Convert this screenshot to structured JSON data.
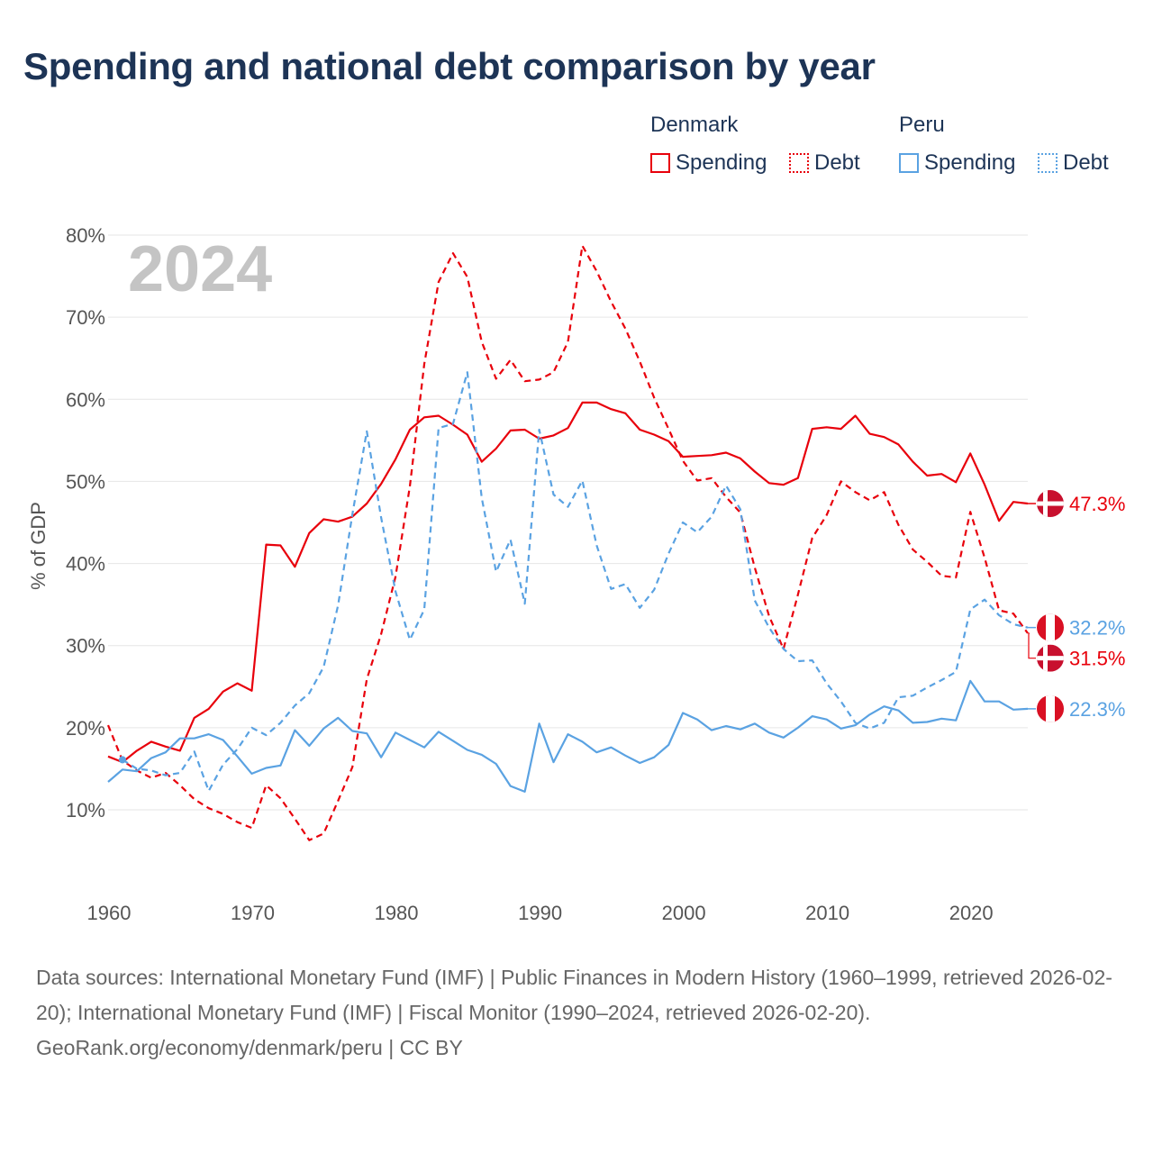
{
  "title": "Spending and national debt comparison by year",
  "legend": {
    "groups": [
      {
        "country": "Denmark",
        "items": [
          {
            "label": "Spending",
            "style": "solid",
            "color": "#e8000b"
          },
          {
            "label": "Debt",
            "style": "dashed",
            "color": "#e8000b"
          }
        ]
      },
      {
        "country": "Peru",
        "items": [
          {
            "label": "Spending",
            "style": "solid",
            "color": "#5aa2e2"
          },
          {
            "label": "Debt",
            "style": "dashed",
            "color": "#5aa2e2"
          }
        ]
      }
    ]
  },
  "colors": {
    "denmark": "#e8000b",
    "peru": "#5aa2e2",
    "grid": "#e6e6e6",
    "title": "#1d3456"
  },
  "year_label": "2024",
  "chart_data": {
    "type": "line",
    "ylabel": "% of GDP",
    "xlim": [
      1960,
      2024
    ],
    "ylim": [
      0,
      82
    ],
    "y_ticks": [
      10,
      20,
      30,
      40,
      50,
      60,
      70,
      80
    ],
    "y_tick_labels": [
      "10%",
      "20%",
      "30%",
      "40%",
      "50%",
      "60%",
      "70%",
      "80%"
    ],
    "x_ticks": [
      1960,
      1970,
      1980,
      1990,
      2000,
      2010,
      2020
    ],
    "x_tick_labels": [
      "1960",
      "1970",
      "1980",
      "1990",
      "2000",
      "2010",
      "2020"
    ],
    "grid": true,
    "series": [
      {
        "name": "Denmark Spending",
        "country": "Denmark",
        "metric": "Spending",
        "style": "solid",
        "color": "#e8000b",
        "start_year": 1960,
        "values": [
          16.5,
          15.8,
          17.2,
          18.3,
          17.7,
          17.2,
          21.2,
          22.3,
          24.4,
          25.4,
          24.5,
          42.3,
          42.2,
          39.6,
          43.7,
          45.4,
          45.1,
          45.7,
          47.3,
          49.7,
          52.7,
          56.3,
          57.8,
          58.0,
          56.9,
          55.7,
          52.4,
          54.0,
          56.2,
          56.3,
          55.2,
          55.6,
          56.5,
          59.6,
          59.6,
          58.8,
          58.3,
          56.3,
          55.7,
          54.9,
          53.0,
          53.1,
          53.2,
          53.5,
          52.8,
          51.2,
          49.8,
          49.6,
          50.4,
          56.4,
          56.6,
          56.4,
          58.0,
          55.8,
          55.4,
          54.5,
          52.4,
          50.7,
          50.9,
          49.9,
          53.4,
          49.6,
          45.2,
          47.5,
          47.3
        ]
      },
      {
        "name": "Denmark Debt",
        "country": "Denmark",
        "metric": "Debt",
        "style": "dashed",
        "color": "#e8000b",
        "start_year": 1960,
        "values": [
          20.3,
          16.0,
          14.8,
          13.9,
          14.5,
          13.0,
          11.3,
          10.2,
          9.5,
          8.5,
          7.8,
          13.0,
          11.4,
          8.9,
          6.3,
          7.1,
          11.1,
          15.2,
          25.9,
          31.4,
          38.4,
          49.4,
          64.3,
          74.3,
          77.8,
          74.9,
          67.0,
          62.5,
          64.8,
          62.2,
          62.4,
          63.3,
          67.0,
          78.7,
          75.6,
          71.9,
          68.6,
          64.6,
          60.2,
          56.4,
          52.5,
          50.1,
          50.4,
          48.1,
          46.2,
          39.5,
          33.6,
          29.6,
          36.2,
          43.1,
          45.9,
          50.0,
          48.7,
          47.7,
          48.7,
          44.7,
          41.7,
          40.2,
          38.5,
          38.3,
          46.3,
          40.7,
          34.3,
          33.9,
          31.5
        ]
      },
      {
        "name": "Peru Spending",
        "country": "Peru",
        "metric": "Spending",
        "style": "solid",
        "color": "#5aa2e2",
        "start_year": 1960,
        "values": [
          13.4,
          14.9,
          14.7,
          16.3,
          17.0,
          18.7,
          18.7,
          19.2,
          18.5,
          16.5,
          14.4,
          15.1,
          15.4,
          19.7,
          17.8,
          19.9,
          21.2,
          19.6,
          19.3,
          16.4,
          19.4,
          18.5,
          17.6,
          19.5,
          18.4,
          17.3,
          16.7,
          15.6,
          12.9,
          12.2,
          20.5,
          15.8,
          19.2,
          18.3,
          17.0,
          17.6,
          16.6,
          15.7,
          16.4,
          17.9,
          21.8,
          21.0,
          19.7,
          20.2,
          19.8,
          20.5,
          19.4,
          18.8,
          20.0,
          21.4,
          21.0,
          19.9,
          20.3,
          21.6,
          22.6,
          22.1,
          20.6,
          20.7,
          21.1,
          20.9,
          25.7,
          23.2,
          23.2,
          22.2,
          22.3
        ]
      },
      {
        "name": "Peru Debt",
        "country": "Peru",
        "metric": "Debt",
        "style": "dashed",
        "color": "#5aa2e2",
        "start_year": 1960,
        "values": [
          null,
          16.1,
          15.0,
          14.8,
          14.2,
          14.5,
          17.1,
          12.3,
          15.5,
          17.4,
          20.0,
          19.1,
          20.6,
          22.7,
          24.2,
          27.4,
          34.9,
          46.0,
          56.1,
          45.6,
          36.6,
          30.7,
          34.4,
          56.5,
          57.0,
          63.3,
          48.0,
          39.0,
          42.9,
          35.1,
          56.3,
          48.4,
          46.9,
          50.1,
          42.2,
          36.9,
          37.5,
          34.6,
          36.8,
          41.2,
          45.0,
          43.8,
          45.7,
          49.5,
          46.6,
          35.5,
          32.2,
          29.6,
          28.1,
          28.2,
          25.4,
          23.2,
          20.6,
          19.9,
          20.6,
          23.7,
          23.9,
          24.9,
          25.8,
          26.8,
          34.4,
          35.6,
          33.7,
          32.6,
          32.2
        ]
      }
    ],
    "end_labels": [
      {
        "series": "Denmark Spending",
        "text": "47.3%",
        "flag": "denmark"
      },
      {
        "series": "Peru Debt",
        "text": "32.2%",
        "flag": "peru"
      },
      {
        "series": "Denmark Debt",
        "text": "31.5%",
        "flag": "denmark"
      },
      {
        "series": "Peru Spending",
        "text": "22.3%",
        "flag": "peru"
      }
    ]
  },
  "footer": {
    "sources": "Data sources: International Monetary Fund (IMF) | Public Finances in Modern History (1960–1999, retrieved 2026-02-20); International Monetary Fund (IMF) | Fiscal Monitor (1990–2024, retrieved 2026-02-20).",
    "credit": "GeoRank.org/economy/denmark/peru | CC BY"
  }
}
